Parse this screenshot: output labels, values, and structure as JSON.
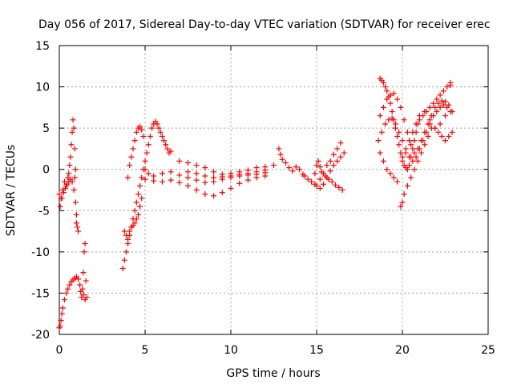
{
  "chart_data": {
    "type": "scatter",
    "title": "Day 056 of 2017, Sidereal Day-to-day VTEC variation (SDTVAR) for receiver erec",
    "xlabel": "GPS time / hours",
    "ylabel": "SDTVAR / TECUs",
    "xlim": [
      0,
      25
    ],
    "ylim": [
      -20,
      15
    ],
    "xticks": [
      0,
      5,
      10,
      15,
      20,
      25
    ],
    "yticks": [
      -20,
      -15,
      -10,
      -5,
      0,
      5,
      10,
      15
    ],
    "grid": true,
    "marker": "+",
    "color": "#ff0000",
    "series": [
      {
        "points": [
          [
            0.0,
            -3.0
          ],
          [
            0.1,
            -3.5
          ],
          [
            0.2,
            -2.5
          ],
          [
            0.3,
            -1.5
          ],
          [
            0.4,
            -2.0
          ],
          [
            0.5,
            -1.0
          ],
          [
            0.55,
            -0.5
          ],
          [
            0.6,
            0.5
          ],
          [
            0.65,
            1.5
          ],
          [
            0.7,
            3.0
          ],
          [
            0.75,
            4.5
          ],
          [
            0.8,
            6.0
          ],
          [
            0.85,
            5.0
          ],
          [
            0.9,
            2.5
          ],
          [
            0.05,
            -4.5
          ],
          [
            0.15,
            -3.5
          ],
          [
            0.25,
            -2.8
          ],
          [
            0.35,
            -2.3
          ],
          [
            0.45,
            -1.8
          ],
          [
            0.55,
            -1.5
          ],
          [
            0.65,
            -1.2
          ],
          [
            0.75,
            -1.5
          ],
          [
            0.85,
            -2.5
          ],
          [
            0.95,
            -4.0
          ],
          [
            1.0,
            -5.5
          ],
          [
            1.05,
            -7.0
          ],
          [
            1.1,
            -7.5
          ],
          [
            1.0,
            -6.5
          ],
          [
            0.9,
            -1.0
          ],
          [
            0.95,
            0.0
          ],
          [
            0.0,
            -19.2
          ],
          [
            0.05,
            -19.0
          ],
          [
            0.1,
            -18.3
          ],
          [
            0.15,
            -17.5
          ],
          [
            0.2,
            -16.8
          ],
          [
            0.3,
            -15.8
          ],
          [
            0.4,
            -15.0
          ],
          [
            0.5,
            -14.5
          ],
          [
            0.6,
            -14.0
          ],
          [
            0.7,
            -13.6
          ],
          [
            0.8,
            -13.4
          ],
          [
            0.9,
            -13.2
          ],
          [
            1.0,
            -13.0
          ],
          [
            1.1,
            -13.3
          ],
          [
            1.2,
            -14.0
          ],
          [
            1.25,
            -14.8
          ],
          [
            1.3,
            -15.5
          ],
          [
            1.35,
            -14.5
          ],
          [
            1.4,
            -12.5
          ],
          [
            1.45,
            -10.0
          ],
          [
            1.5,
            -9.0
          ],
          [
            1.55,
            -13.5
          ],
          [
            1.6,
            -15.5
          ],
          [
            1.5,
            -15.8
          ],
          [
            1.4,
            -15.2
          ]
        ]
      },
      {
        "points": [
          [
            3.7,
            -12.0
          ],
          [
            3.8,
            -11.0
          ],
          [
            3.9,
            -10.0
          ],
          [
            4.0,
            -9.0
          ],
          [
            4.1,
            -8.0
          ],
          [
            4.2,
            -7.0
          ],
          [
            4.3,
            -6.0
          ],
          [
            4.4,
            -5.0
          ],
          [
            4.5,
            -4.0
          ],
          [
            4.6,
            -3.0
          ],
          [
            4.7,
            -2.0
          ],
          [
            4.8,
            -1.0
          ],
          [
            4.9,
            0.0
          ],
          [
            5.0,
            1.0
          ],
          [
            5.1,
            2.0
          ],
          [
            5.2,
            3.0
          ],
          [
            5.3,
            4.0
          ],
          [
            5.4,
            5.0
          ],
          [
            5.5,
            5.5
          ],
          [
            5.6,
            5.8
          ],
          [
            5.7,
            5.5
          ],
          [
            5.8,
            5.0
          ],
          [
            5.9,
            4.5
          ],
          [
            6.0,
            4.0
          ],
          [
            6.1,
            3.5
          ],
          [
            6.2,
            3.0
          ],
          [
            6.3,
            2.5
          ],
          [
            6.4,
            2.0
          ],
          [
            6.5,
            2.2
          ],
          [
            3.8,
            -7.5
          ],
          [
            3.9,
            -8.0
          ],
          [
            4.0,
            -8.5
          ],
          [
            4.1,
            -7.5
          ],
          [
            4.2,
            -7.0
          ],
          [
            4.3,
            -6.8
          ],
          [
            4.4,
            -6.5
          ],
          [
            4.5,
            -6.0
          ],
          [
            4.6,
            -5.5
          ],
          [
            4.7,
            -4.5
          ],
          [
            4.8,
            -3.5
          ],
          [
            4.0,
            -1.0
          ],
          [
            4.1,
            0.5
          ],
          [
            4.2,
            1.5
          ],
          [
            4.3,
            2.5
          ],
          [
            4.4,
            3.5
          ],
          [
            4.5,
            4.5
          ],
          [
            4.6,
            5.0
          ],
          [
            4.7,
            5.2
          ],
          [
            4.8,
            4.8
          ],
          [
            4.9,
            4.0
          ],
          [
            5.0,
            0.0
          ],
          [
            5.2,
            -0.5
          ],
          [
            5.5,
            -0.8
          ],
          [
            6.0,
            -0.5
          ],
          [
            6.5,
            -0.3
          ],
          [
            7.0,
            -0.7
          ],
          [
            7.5,
            -1.0
          ],
          [
            8.0,
            -1.3
          ],
          [
            8.5,
            -1.6
          ],
          [
            9.0,
            -1.5
          ],
          [
            9.5,
            -1.2
          ],
          [
            10.0,
            -1.0
          ],
          [
            10.5,
            -0.8
          ],
          [
            11.0,
            -0.7
          ],
          [
            11.5,
            -0.6
          ],
          [
            12.0,
            -0.4
          ],
          [
            5.0,
            -1.2
          ],
          [
            5.5,
            -1.4
          ],
          [
            6.0,
            -1.5
          ],
          [
            6.5,
            -1.3
          ],
          [
            7.0,
            -1.6
          ],
          [
            7.5,
            -2.0
          ],
          [
            8.0,
            -2.5
          ],
          [
            8.5,
            -3.0
          ],
          [
            9.0,
            -3.2
          ],
          [
            9.5,
            -2.8
          ],
          [
            10.0,
            -2.3
          ],
          [
            10.5,
            -1.7
          ],
          [
            11.0,
            -1.3
          ],
          [
            11.5,
            -1.0
          ],
          [
            12.0,
            -0.8
          ],
          [
            7.0,
            1.0
          ],
          [
            7.5,
            0.8
          ],
          [
            8.0,
            0.5
          ],
          [
            8.5,
            0.2
          ],
          [
            9.0,
            -0.3
          ],
          [
            9.5,
            -0.6
          ],
          [
            10.0,
            -0.5
          ],
          [
            10.5,
            -0.3
          ],
          [
            11.0,
            -0.1
          ],
          [
            11.5,
            0.2
          ],
          [
            12.0,
            0.3
          ],
          [
            12.5,
            0.5
          ],
          [
            7.5,
            -0.3
          ],
          [
            8.0,
            -0.5
          ],
          [
            8.5,
            -0.8
          ],
          [
            9.0,
            -1.0
          ],
          [
            9.5,
            -0.9
          ],
          [
            10.0,
            -0.8
          ],
          [
            10.5,
            -0.6
          ],
          [
            11.0,
            -0.5
          ],
          [
            11.5,
            -0.3
          ],
          [
            12.0,
            -0.1
          ],
          [
            12.8,
            2.5
          ],
          [
            12.9,
            1.8
          ],
          [
            13.0,
            1.2
          ],
          [
            13.2,
            0.8
          ],
          [
            13.4,
            0.2
          ],
          [
            13.6,
            -0.2
          ],
          [
            13.8,
            0.3
          ],
          [
            14.0,
            0.0
          ],
          [
            14.2,
            -0.6
          ],
          [
            14.3,
            -0.8
          ],
          [
            14.5,
            -1.2
          ],
          [
            14.7,
            -1.5
          ],
          [
            14.9,
            -1.8
          ]
        ]
      },
      {
        "points": [
          [
            14.9,
            -0.5
          ],
          [
            15.0,
            0.5
          ],
          [
            15.1,
            1.0
          ],
          [
            15.2,
            0.3
          ],
          [
            15.3,
            -0.3
          ],
          [
            15.5,
            -0.8
          ],
          [
            15.7,
            -1.2
          ],
          [
            15.9,
            -1.5
          ],
          [
            16.1,
            -1.9
          ],
          [
            16.3,
            -2.2
          ],
          [
            16.5,
            -2.5
          ],
          [
            15.0,
            -2.0
          ],
          [
            15.2,
            -1.2
          ],
          [
            15.4,
            -0.5
          ],
          [
            15.6,
            0.5
          ],
          [
            15.8,
            1.0
          ],
          [
            16.0,
            1.8
          ],
          [
            16.2,
            2.5
          ],
          [
            16.4,
            3.2
          ],
          [
            15.2,
            -2.3
          ],
          [
            15.4,
            -1.8
          ],
          [
            15.6,
            -1.0
          ],
          [
            15.8,
            -0.2
          ],
          [
            16.0,
            0.5
          ],
          [
            16.2,
            1.0
          ],
          [
            16.4,
            1.5
          ],
          [
            16.6,
            2.0
          ]
        ]
      },
      {
        "points": [
          [
            18.7,
            11.0
          ],
          [
            18.8,
            10.8
          ],
          [
            18.9,
            10.5
          ],
          [
            19.0,
            10.0
          ],
          [
            19.1,
            9.5
          ],
          [
            19.2,
            8.8
          ],
          [
            19.3,
            8.0
          ],
          [
            19.4,
            7.0
          ],
          [
            19.5,
            6.0
          ],
          [
            19.6,
            5.0
          ],
          [
            19.7,
            4.0
          ],
          [
            19.8,
            3.0
          ],
          [
            19.9,
            2.0
          ],
          [
            20.0,
            1.0
          ],
          [
            20.1,
            0.5
          ],
          [
            20.2,
            0.2
          ],
          [
            20.3,
            0.0
          ],
          [
            20.4,
            0.5
          ],
          [
            20.5,
            1.5
          ],
          [
            20.6,
            2.5
          ],
          [
            20.7,
            3.5
          ],
          [
            20.8,
            4.5
          ],
          [
            20.9,
            5.5
          ],
          [
            21.0,
            6.0
          ],
          [
            21.2,
            6.5
          ],
          [
            21.4,
            7.0
          ],
          [
            21.6,
            7.5
          ],
          [
            21.8,
            8.0
          ],
          [
            22.0,
            8.5
          ],
          [
            22.2,
            9.0
          ],
          [
            22.4,
            9.5
          ],
          [
            22.6,
            10.0
          ],
          [
            22.8,
            10.2
          ],
          [
            18.7,
            6.5
          ],
          [
            18.9,
            7.5
          ],
          [
            19.1,
            8.5
          ],
          [
            19.3,
            9.0
          ],
          [
            19.5,
            9.2
          ],
          [
            19.7,
            8.5
          ],
          [
            19.9,
            7.5
          ],
          [
            20.1,
            6.0
          ],
          [
            20.3,
            4.5
          ],
          [
            20.5,
            3.0
          ],
          [
            20.7,
            2.0
          ],
          [
            20.9,
            2.5
          ],
          [
            21.1,
            3.5
          ],
          [
            21.3,
            4.5
          ],
          [
            21.5,
            5.5
          ],
          [
            21.7,
            6.5
          ],
          [
            21.9,
            7.5
          ],
          [
            22.1,
            8.0
          ],
          [
            22.3,
            8.3
          ],
          [
            22.5,
            8.2
          ],
          [
            22.7,
            7.8
          ],
          [
            22.9,
            7.0
          ],
          [
            18.6,
            3.5
          ],
          [
            18.8,
            4.5
          ],
          [
            19.0,
            5.5
          ],
          [
            19.2,
            6.0
          ],
          [
            19.4,
            6.2
          ],
          [
            19.6,
            5.5
          ],
          [
            19.8,
            4.5
          ],
          [
            20.0,
            3.5
          ],
          [
            20.2,
            2.0
          ],
          [
            20.4,
            1.5
          ],
          [
            20.6,
            1.0
          ],
          [
            20.8,
            1.5
          ],
          [
            21.0,
            2.5
          ],
          [
            21.2,
            3.5
          ],
          [
            21.4,
            4.5
          ],
          [
            21.6,
            5.5
          ],
          [
            21.8,
            6.5
          ],
          [
            22.0,
            7.0
          ],
          [
            22.2,
            7.5
          ],
          [
            22.4,
            7.8
          ],
          [
            22.6,
            7.5
          ],
          [
            22.8,
            7.0
          ],
          [
            18.7,
            2.0
          ],
          [
            18.9,
            1.0
          ],
          [
            19.1,
            0.0
          ],
          [
            19.3,
            -0.5
          ],
          [
            19.5,
            -1.0
          ],
          [
            19.7,
            -1.5
          ],
          [
            19.9,
            -4.5
          ],
          [
            20.0,
            -4.0
          ],
          [
            20.1,
            -3.0
          ],
          [
            20.3,
            -2.0
          ],
          [
            20.5,
            -1.0
          ],
          [
            20.7,
            0.0
          ],
          [
            20.9,
            1.0
          ],
          [
            21.1,
            2.0
          ],
          [
            21.3,
            3.0
          ],
          [
            21.5,
            4.0
          ],
          [
            21.7,
            5.0
          ],
          [
            21.9,
            5.0
          ],
          [
            22.1,
            4.5
          ],
          [
            22.3,
            4.0
          ],
          [
            22.5,
            3.5
          ],
          [
            22.7,
            4.0
          ],
          [
            22.9,
            4.5
          ],
          [
            20.0,
            1.5
          ],
          [
            20.2,
            2.5
          ],
          [
            20.4,
            3.5
          ],
          [
            20.6,
            4.5
          ],
          [
            20.8,
            5.5
          ],
          [
            21.0,
            6.5
          ],
          [
            21.3,
            7.0
          ],
          [
            21.6,
            6.0
          ],
          [
            21.9,
            5.0
          ],
          [
            22.2,
            5.5
          ],
          [
            22.5,
            6.5
          ],
          [
            22.8,
            10.5
          ]
        ]
      }
    ]
  }
}
